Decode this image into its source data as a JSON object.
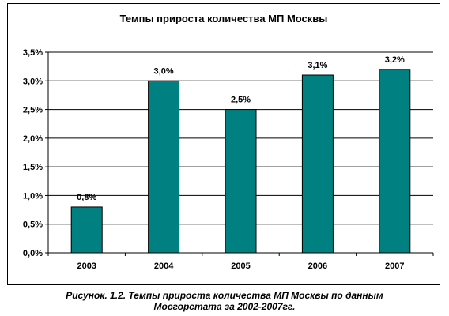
{
  "chart_data": {
    "type": "bar",
    "title": "Темпы прироста количества МП Москвы",
    "categories": [
      "2003",
      "2004",
      "2005",
      "2006",
      "2007"
    ],
    "values": [
      0.8,
      3.0,
      2.5,
      3.1,
      3.2
    ],
    "data_labels": [
      "0,8%",
      "3,0%",
      "2,5%",
      "3,1%",
      "3,2%"
    ],
    "yticks": [
      0,
      0.5,
      1.0,
      1.5,
      2.0,
      2.5,
      3.0,
      3.5
    ],
    "ytick_labels": [
      "0,0%",
      "0,5%",
      "1,0%",
      "1,5%",
      "2,0%",
      "2,5%",
      "3,0%",
      "3,5%"
    ],
    "ylim": [
      0,
      3.5
    ],
    "grid": true,
    "legend": "none",
    "bar_color": "#008080"
  },
  "caption": {
    "line1": "Рисунок. 1.2. Темпы прироста количества МП Москвы по данным",
    "line2": "Мосгорстата за 2002-2007гг."
  }
}
